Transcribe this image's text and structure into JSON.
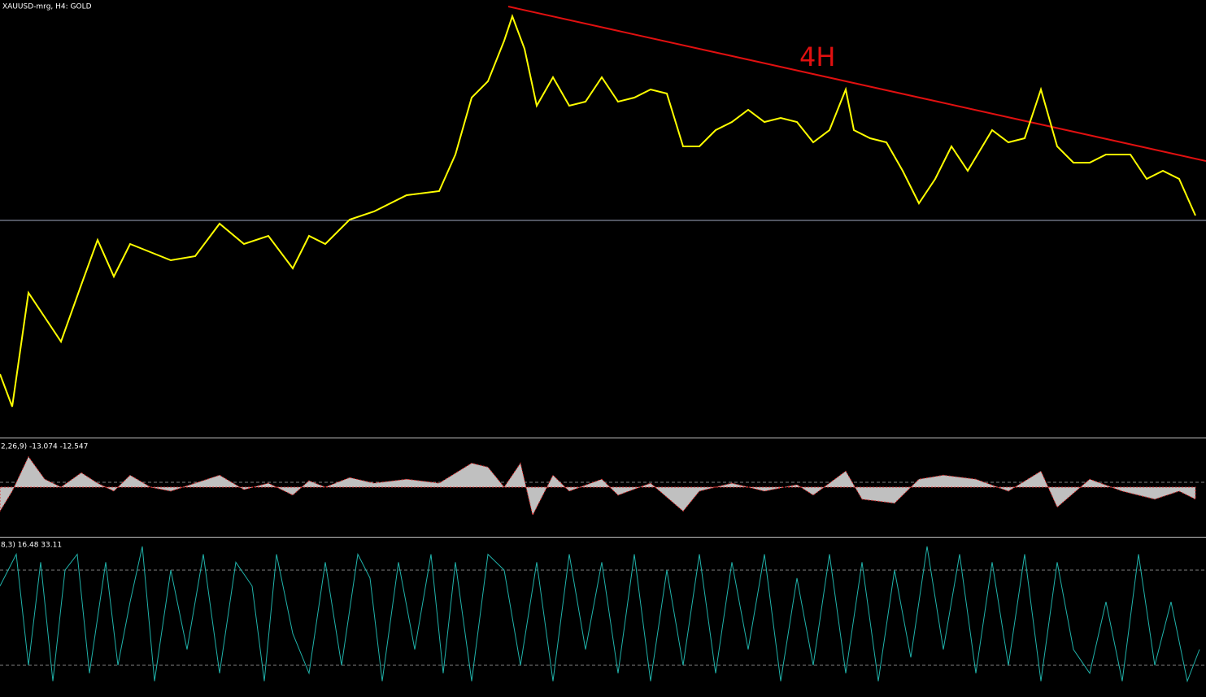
{
  "chart_data": [
    {
      "type": "line",
      "title": "XAUUSD-mrg, H4:  GOLD",
      "annotation": "4H",
      "color": "#ffff00",
      "x": [
        0,
        15,
        35,
        55,
        75,
        100,
        120,
        140,
        160,
        185,
        210,
        240,
        270,
        300,
        330,
        360,
        380,
        400,
        430,
        460,
        500,
        540,
        560,
        580,
        600,
        620,
        630,
        645,
        660,
        680,
        700,
        720,
        740,
        760,
        780,
        800,
        820,
        840,
        860,
        880,
        900,
        920,
        940,
        960,
        980,
        1000,
        1020,
        1040,
        1050,
        1070,
        1090,
        1110,
        1130,
        1150,
        1170,
        1190,
        1220,
        1240,
        1260,
        1280,
        1300,
        1320,
        1340,
        1360,
        1390,
        1410,
        1430,
        1450,
        1470
      ],
      "values": [
        78,
        38,
        178,
        148,
        118,
        188,
        243,
        198,
        238,
        228,
        218,
        223,
        263,
        238,
        248,
        208,
        248,
        238,
        268,
        278,
        298,
        303,
        348,
        418,
        438,
        488,
        518,
        478,
        408,
        443,
        408,
        413,
        443,
        413,
        418,
        428,
        423,
        358,
        358,
        378,
        388,
        403,
        388,
        393,
        388,
        363,
        378,
        428,
        378,
        368,
        363,
        328,
        288,
        318,
        358,
        328,
        378,
        363,
        368,
        428,
        358,
        338,
        338,
        348,
        348,
        318,
        328,
        318,
        273
      ],
      "xlim": [
        0,
        1483
      ],
      "ylim": [
        0,
        538
      ]
    },
    {
      "type": "area",
      "title": "2,26,9) -13.074 -12.547",
      "color": "#c0c0c0",
      "x": [
        0,
        15,
        35,
        55,
        75,
        100,
        120,
        140,
        160,
        185,
        210,
        240,
        270,
        300,
        330,
        360,
        380,
        400,
        430,
        460,
        500,
        540,
        580,
        600,
        620,
        640,
        655,
        680,
        700,
        740,
        760,
        800,
        840,
        860,
        900,
        940,
        980,
        1000,
        1040,
        1060,
        1100,
        1130,
        1160,
        1200,
        1240,
        1280,
        1300,
        1340,
        1380,
        1420,
        1450,
        1470
      ],
      "values": [
        -30,
        -5,
        38,
        10,
        0,
        18,
        5,
        -5,
        15,
        0,
        -5,
        5,
        15,
        -3,
        5,
        -10,
        8,
        0,
        12,
        5,
        10,
        5,
        30,
        25,
        0,
        30,
        -35,
        15,
        -5,
        10,
        -10,
        5,
        -30,
        -5,
        5,
        -5,
        3,
        -10,
        20,
        -15,
        -20,
        10,
        15,
        10,
        -5,
        20,
        -25,
        10,
        -5,
        -15,
        -5,
        -15
      ],
      "xlim": [
        0,
        1483
      ],
      "ylim": [
        -60,
        60
      ]
    },
    {
      "type": "line",
      "title": "8,3) 16.48 33.11",
      "color": "#20b2aa",
      "levels": [
        20,
        80
      ],
      "x": [
        0,
        20,
        35,
        50,
        65,
        80,
        95,
        110,
        130,
        145,
        160,
        175,
        190,
        210,
        230,
        250,
        270,
        290,
        310,
        325,
        340,
        360,
        380,
        400,
        420,
        440,
        455,
        470,
        490,
        510,
        530,
        545,
        560,
        580,
        600,
        620,
        640,
        660,
        680,
        700,
        720,
        740,
        760,
        780,
        800,
        820,
        840,
        860,
        880,
        900,
        920,
        940,
        960,
        980,
        1000,
        1020,
        1040,
        1060,
        1080,
        1100,
        1120,
        1140,
        1160,
        1180,
        1200,
        1220,
        1240,
        1260,
        1280,
        1300,
        1320,
        1340,
        1360,
        1380,
        1400,
        1420,
        1440,
        1460,
        1475
      ],
      "values": [
        70,
        90,
        20,
        85,
        10,
        80,
        90,
        15,
        85,
        20,
        60,
        95,
        10,
        80,
        30,
        90,
        15,
        85,
        70,
        10,
        90,
        40,
        15,
        85,
        20,
        90,
        75,
        10,
        85,
        30,
        90,
        15,
        85,
        10,
        90,
        80,
        20,
        85,
        10,
        90,
        30,
        85,
        15,
        90,
        10,
        80,
        20,
        90,
        15,
        85,
        30,
        90,
        10,
        75,
        20,
        90,
        15,
        85,
        10,
        80,
        25,
        95,
        30,
        90,
        15,
        85,
        20,
        90,
        10,
        85,
        30,
        15,
        60,
        10,
        90,
        20,
        60,
        10,
        30
      ],
      "xlim": [
        0,
        1483
      ],
      "ylim": [
        0,
        100
      ]
    }
  ]
}
